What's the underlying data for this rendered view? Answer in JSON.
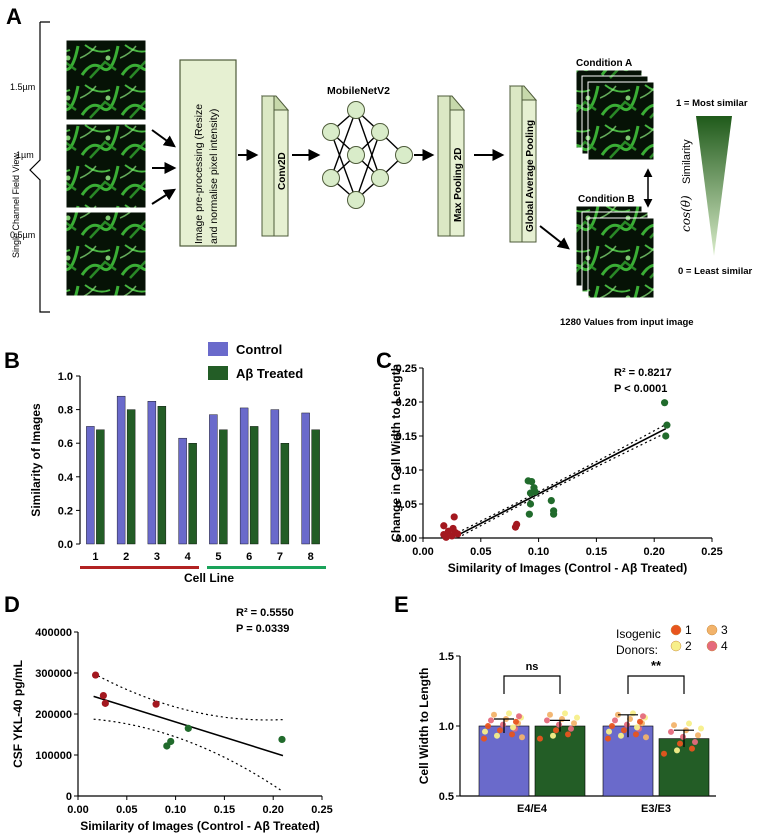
{
  "panel_labels": {
    "a": "A",
    "b": "B",
    "c": "C",
    "d": "D",
    "e": "E"
  },
  "pipeline": {
    "field_view_label": "Single Channel Field View",
    "scales": [
      "1.5µm",
      "1µm",
      "0.5µm"
    ],
    "preprocess_line1": "Image pre-processing (Resize",
    "preprocess_line2": "and normalise pixel intensity)",
    "conv_label": "Conv2D",
    "net_title": "MobileNetV2",
    "maxpool_label": "Max Pooling 2D",
    "gap_label": "Global Average Pooling",
    "condition_a": "Condition A",
    "condition_b": "Condition B",
    "values_caption": "1280 Values from input image",
    "most_similar": "1 = Most similar",
    "least_similar": "0 = Least similar",
    "similarity_label": "Similarity",
    "cos_label": "cos(θ)",
    "colors": {
      "box_fill": "#e6f0d2",
      "box_edge": "#4e5b3a",
      "wedge_dark": "#1f5a1a",
      "wedge_light": "#d9ecc9",
      "node_fill": "#d9ecc9"
    }
  },
  "chart_data": [
    {
      "id": "B",
      "type": "bar",
      "title": "",
      "xlabel": "Cell Line",
      "ylabel": "Similarity of Images",
      "ylim": [
        0,
        1.0
      ],
      "yticks": [
        "0.0",
        "0.2",
        "0.4",
        "0.6",
        "0.8",
        "1.0"
      ],
      "categories": [
        "1",
        "2",
        "3",
        "4",
        "5",
        "6",
        "7",
        "8"
      ],
      "series": [
        {
          "name": "Control",
          "color": "#6a6acb",
          "values": [
            0.7,
            0.88,
            0.85,
            0.63,
            0.77,
            0.81,
            0.8,
            0.78
          ]
        },
        {
          "name": "Aβ Treated",
          "color": "#235d26",
          "values": [
            0.68,
            0.8,
            0.82,
            0.6,
            0.68,
            0.7,
            0.6,
            0.68
          ]
        }
      ],
      "group_bar_colors": [
        "#b22222",
        "#1aa35a"
      ]
    },
    {
      "id": "C",
      "type": "scatter",
      "xlabel": "Similarity of Images (Control - Aβ Treated)",
      "ylabel_line1": "Change in Cell Width to Length",
      "xlim": [
        0,
        0.25
      ],
      "ylim": [
        0,
        0.25
      ],
      "xticks": [
        "0.00",
        "0.05",
        "0.10",
        "0.15",
        "0.20",
        "0.25"
      ],
      "yticks": [
        "0.00",
        "0.05",
        "0.10",
        "0.15",
        "0.20",
        "0.25"
      ],
      "r2": "R² = 0.8217",
      "p": "P < 0.0001",
      "fit": {
        "slope": 0.87,
        "intercept": -0.022
      },
      "colors": {
        "red": "#a3181f",
        "green": "#216b2c"
      },
      "points": [
        {
          "x": 0.018,
          "y": 0.005,
          "g": "red"
        },
        {
          "x": 0.018,
          "y": 0.018,
          "g": "red"
        },
        {
          "x": 0.02,
          "y": 0.001,
          "g": "red"
        },
        {
          "x": 0.022,
          "y": 0.01,
          "g": "red"
        },
        {
          "x": 0.025,
          "y": 0.003,
          "g": "red"
        },
        {
          "x": 0.026,
          "y": 0.014,
          "g": "red"
        },
        {
          "x": 0.028,
          "y": 0.008,
          "g": "red"
        },
        {
          "x": 0.027,
          "y": 0.031,
          "g": "red"
        },
        {
          "x": 0.03,
          "y": 0.006,
          "g": "red"
        },
        {
          "x": 0.08,
          "y": 0.016,
          "g": "red"
        },
        {
          "x": 0.081,
          "y": 0.02,
          "g": "red"
        },
        {
          "x": 0.091,
          "y": 0.084,
          "g": "green"
        },
        {
          "x": 0.094,
          "y": 0.083,
          "g": "green"
        },
        {
          "x": 0.096,
          "y": 0.074,
          "g": "green"
        },
        {
          "x": 0.093,
          "y": 0.066,
          "g": "green"
        },
        {
          "x": 0.097,
          "y": 0.068,
          "g": "green"
        },
        {
          "x": 0.093,
          "y": 0.05,
          "g": "green"
        },
        {
          "x": 0.092,
          "y": 0.035,
          "g": "green"
        },
        {
          "x": 0.111,
          "y": 0.055,
          "g": "green"
        },
        {
          "x": 0.113,
          "y": 0.04,
          "g": "green"
        },
        {
          "x": 0.113,
          "y": 0.035,
          "g": "green"
        },
        {
          "x": 0.209,
          "y": 0.199,
          "g": "green"
        },
        {
          "x": 0.211,
          "y": 0.166,
          "g": "green"
        },
        {
          "x": 0.21,
          "y": 0.15,
          "g": "green"
        }
      ]
    },
    {
      "id": "D",
      "type": "scatter",
      "xlabel": "Similarity of Images (Control - Aβ Treated)",
      "ylabel": "CSF YKL-40 pg/mL",
      "xlim": [
        0,
        0.25
      ],
      "ylim": [
        0,
        400000
      ],
      "xticks": [
        "0.00",
        "0.05",
        "0.10",
        "0.15",
        "0.20",
        "0.25"
      ],
      "yticks": [
        "0",
        "100000",
        "200000",
        "300000",
        "400000"
      ],
      "r2": "R² = 0.5550",
      "p": "P = 0.0339",
      "fit": {
        "slope": -745000,
        "intercept": 255000
      },
      "colors": {
        "red": "#a3181f",
        "green": "#216b2c"
      },
      "points": [
        {
          "x": 0.018,
          "y": 295000,
          "g": "red"
        },
        {
          "x": 0.026,
          "y": 245000,
          "g": "red"
        },
        {
          "x": 0.028,
          "y": 226000,
          "g": "red"
        },
        {
          "x": 0.08,
          "y": 224000,
          "g": "red"
        },
        {
          "x": 0.091,
          "y": 122000,
          "g": "green"
        },
        {
          "x": 0.095,
          "y": 133000,
          "g": "green"
        },
        {
          "x": 0.113,
          "y": 165000,
          "g": "green"
        },
        {
          "x": 0.209,
          "y": 138000,
          "g": "green"
        }
      ]
    },
    {
      "id": "E",
      "type": "bar",
      "ylabel": "Cell Width to Length",
      "ylim": [
        0.5,
        1.5
      ],
      "yticks": [
        "0.5",
        "1.0",
        "1.5"
      ],
      "categories": [
        "E4/E4",
        "E3/E3"
      ],
      "series": [
        {
          "name": "Control",
          "color": "#6a6acb",
          "values": [
            1.0,
            1.0
          ],
          "err": [
            0.05,
            0.08
          ]
        },
        {
          "name": "Aβ Treated",
          "color": "#235d26",
          "values": [
            1.0,
            0.91
          ],
          "err": [
            0.04,
            0.06
          ]
        }
      ],
      "significance": [
        "ns",
        "**"
      ],
      "legend_title_1": "Isogenic",
      "legend_title_2": "Donors:",
      "donors": [
        {
          "label": "1",
          "color": "#e8541e"
        },
        {
          "label": "2",
          "color": "#f7ef8a"
        },
        {
          "label": "3",
          "color": "#f2b36b"
        },
        {
          "label": "4",
          "color": "#e56a7c"
        }
      ]
    }
  ]
}
